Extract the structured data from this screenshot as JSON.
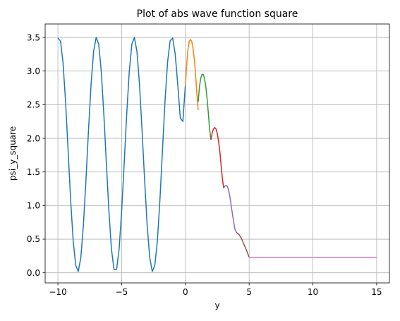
{
  "chart_data": {
    "type": "line",
    "title": "Plot of abs wave function square",
    "xlabel": "y",
    "ylabel": "psi_y_square",
    "xlim": [
      -11,
      16
    ],
    "ylim": [
      -0.15,
      3.7
    ],
    "xticks": [
      -10,
      -5,
      0,
      5,
      10,
      15
    ],
    "xtick_labels": [
      "−10",
      "−5",
      "0",
      "5",
      "10",
      "15"
    ],
    "yticks": [
      0.0,
      0.5,
      1.0,
      1.5,
      2.0,
      2.5,
      3.0,
      3.5
    ],
    "ytick_labels": [
      "0.0",
      "0.5",
      "1.0",
      "1.5",
      "2.0",
      "2.5",
      "3.0",
      "3.5"
    ],
    "grid": true,
    "series": [
      {
        "color": "#1f77b4",
        "segment": "y from -10 to 0: oscillating",
        "points": [
          [
            -10,
            3.49
          ],
          [
            -9.8,
            3.45
          ],
          [
            -9.6,
            3.13
          ],
          [
            -9.4,
            2.55
          ],
          [
            -9.2,
            1.82
          ],
          [
            -9.0,
            1.08
          ],
          [
            -8.8,
            0.47
          ],
          [
            -8.6,
            0.11
          ],
          [
            -8.4,
            0.02
          ],
          [
            -8.2,
            0.23
          ],
          [
            -8.0,
            0.71
          ],
          [
            -7.8,
            1.38
          ],
          [
            -7.6,
            2.12
          ],
          [
            -7.4,
            2.8
          ],
          [
            -7.2,
            3.29
          ],
          [
            -7.0,
            3.5
          ],
          [
            -6.8,
            3.4
          ],
          [
            -6.6,
            3.0
          ],
          [
            -6.4,
            2.37
          ],
          [
            -6.2,
            1.63
          ],
          [
            -6.0,
            0.92
          ],
          [
            -5.8,
            0.35
          ],
          [
            -5.6,
            0.05
          ],
          [
            -5.4,
            0.05
          ],
          [
            -5.2,
            0.35
          ],
          [
            -5.0,
            0.92
          ],
          [
            -4.8,
            1.63
          ],
          [
            -4.6,
            2.37
          ],
          [
            -4.4,
            3.0
          ],
          [
            -4.2,
            3.4
          ],
          [
            -4.0,
            3.5
          ],
          [
            -3.8,
            3.29
          ],
          [
            -3.6,
            2.8
          ],
          [
            -3.4,
            2.12
          ],
          [
            -3.2,
            1.38
          ],
          [
            -3.0,
            0.71
          ],
          [
            -2.8,
            0.23
          ],
          [
            -2.6,
            0.02
          ],
          [
            -2.4,
            0.11
          ],
          [
            -2.2,
            0.47
          ],
          [
            -2.0,
            1.08
          ],
          [
            -1.8,
            1.82
          ],
          [
            -1.6,
            2.55
          ],
          [
            -1.4,
            3.13
          ],
          [
            -1.2,
            3.45
          ],
          [
            -1.0,
            3.49
          ],
          [
            -0.8,
            3.25
          ],
          [
            -0.6,
            2.8
          ],
          [
            -0.4,
            2.3
          ],
          [
            -0.2,
            2.25
          ],
          [
            0.0,
            2.8
          ]
        ]
      },
      {
        "color": "#ff7f0e",
        "segment": "y from 0 to 1",
        "points": [
          [
            0.0,
            2.78
          ],
          [
            0.1,
            3.1
          ],
          [
            0.2,
            3.32
          ],
          [
            0.3,
            3.44
          ],
          [
            0.4,
            3.47
          ],
          [
            0.5,
            3.44
          ],
          [
            0.6,
            3.34
          ],
          [
            0.7,
            3.17
          ],
          [
            0.8,
            2.94
          ],
          [
            0.9,
            2.66
          ],
          [
            1.0,
            2.42
          ]
        ]
      },
      {
        "color": "#2ca02c",
        "segment": "y from 1 to 2",
        "points": [
          [
            1.0,
            2.54
          ],
          [
            1.1,
            2.76
          ],
          [
            1.2,
            2.89
          ],
          [
            1.3,
            2.95
          ],
          [
            1.4,
            2.95
          ],
          [
            1.5,
            2.89
          ],
          [
            1.6,
            2.77
          ],
          [
            1.7,
            2.59
          ],
          [
            1.8,
            2.37
          ],
          [
            1.9,
            2.13
          ],
          [
            2.0,
            1.98
          ]
        ]
      },
      {
        "color": "#d62728",
        "segment": "y from 2 to 3",
        "points": [
          [
            2.0,
            1.98
          ],
          [
            2.1,
            2.08
          ],
          [
            2.2,
            2.14
          ],
          [
            2.3,
            2.16
          ],
          [
            2.4,
            2.14
          ],
          [
            2.5,
            2.07
          ],
          [
            2.6,
            1.96
          ],
          [
            2.7,
            1.8
          ],
          [
            2.8,
            1.6
          ],
          [
            2.9,
            1.4
          ],
          [
            3.0,
            1.26
          ]
        ]
      },
      {
        "color": "#9467bd",
        "segment": "y from 3 to 4",
        "points": [
          [
            3.0,
            1.26
          ],
          [
            3.1,
            1.29
          ],
          [
            3.2,
            1.3
          ],
          [
            3.3,
            1.28
          ],
          [
            3.4,
            1.22
          ],
          [
            3.5,
            1.12
          ],
          [
            3.6,
            0.99
          ],
          [
            3.7,
            0.86
          ],
          [
            3.8,
            0.74
          ],
          [
            3.9,
            0.64
          ],
          [
            4.0,
            0.6
          ]
        ]
      },
      {
        "color": "#8c564b",
        "segment": "y from 4 to 5",
        "points": [
          [
            4.0,
            0.6
          ],
          [
            4.2,
            0.57
          ],
          [
            4.4,
            0.51
          ],
          [
            4.6,
            0.42
          ],
          [
            4.8,
            0.33
          ],
          [
            5.0,
            0.23
          ]
        ]
      },
      {
        "color": "#e377c2",
        "segment": "y from 5 to 15: constant",
        "points": [
          [
            5.0,
            0.23
          ],
          [
            15.0,
            0.23
          ]
        ]
      }
    ]
  }
}
